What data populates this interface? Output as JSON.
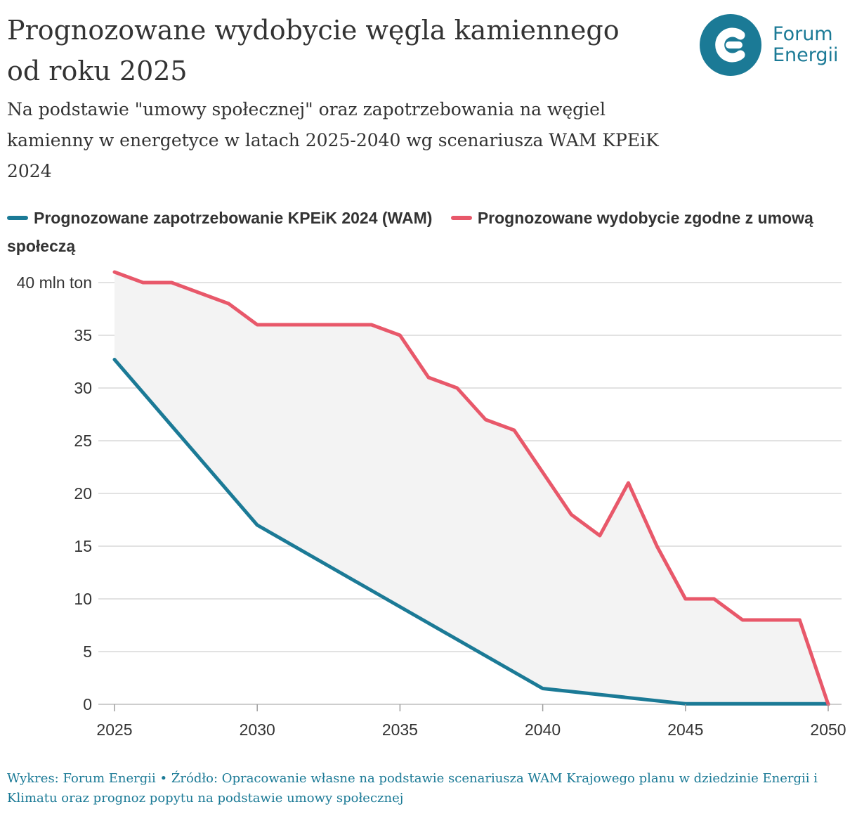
{
  "title": "Prognozowane wydobycie węgla kamiennego od roku 2025",
  "subtitle": "Na podstawie \"umowy społecznej\" oraz zapotrzebowania na węgiel kamienny w energetyce w latach 2025-2040 wg scenariusza WAM KPEiK 2024",
  "logo": {
    "line1": "Forum",
    "line2": "Energii"
  },
  "footer": "Wykres: Forum Energii • Źródło: Opracowanie własne na podstawie scenariusza WAM Krajowego planu w dziedzinie Energii i Klimatu oraz prognoz popytu na podstawie umowy społecznej",
  "colors": {
    "demand": "#1b7a96",
    "mining": "#e8586a",
    "area": "#f3f3f3",
    "grid": "#d9d9d9"
  },
  "chart_data": {
    "type": "line",
    "xlim": [
      2025,
      2050
    ],
    "ylim": [
      0,
      40
    ],
    "x_ticks": [
      "2025",
      "2030",
      "2035",
      "2040",
      "2045",
      "2050"
    ],
    "y_ticks": [
      "0",
      "5",
      "10",
      "15",
      "20",
      "25",
      "30",
      "35",
      "40 mln ton"
    ],
    "grid": true,
    "legend_position": "top",
    "fill_between_series": true,
    "series": [
      {
        "name": "Prognozowane zapotrzebowanie KPEiK 2024 (WAM)",
        "color": "#1b7a96",
        "x": [
          2025,
          2030,
          2034,
          2040,
          2045,
          2050
        ],
        "y": [
          32.7,
          17.0,
          10.8,
          1.5,
          0.05,
          0.05
        ]
      },
      {
        "name": "Prognozowane wydobycie zgodne z umową społeczą",
        "color": "#e8586a",
        "x": [
          2025,
          2026,
          2027,
          2029,
          2030,
          2031,
          2032,
          2033,
          2034,
          2035,
          2036,
          2037,
          2038,
          2039,
          2040,
          2041,
          2042,
          2043,
          2044,
          2045,
          2046,
          2047,
          2048,
          2049,
          2050
        ],
        "y": [
          41,
          40,
          40,
          38,
          36,
          36,
          36,
          36,
          36,
          35,
          31,
          30,
          27,
          26,
          22,
          18,
          16,
          21,
          15,
          10,
          10,
          8,
          8,
          8,
          0
        ]
      }
    ]
  }
}
